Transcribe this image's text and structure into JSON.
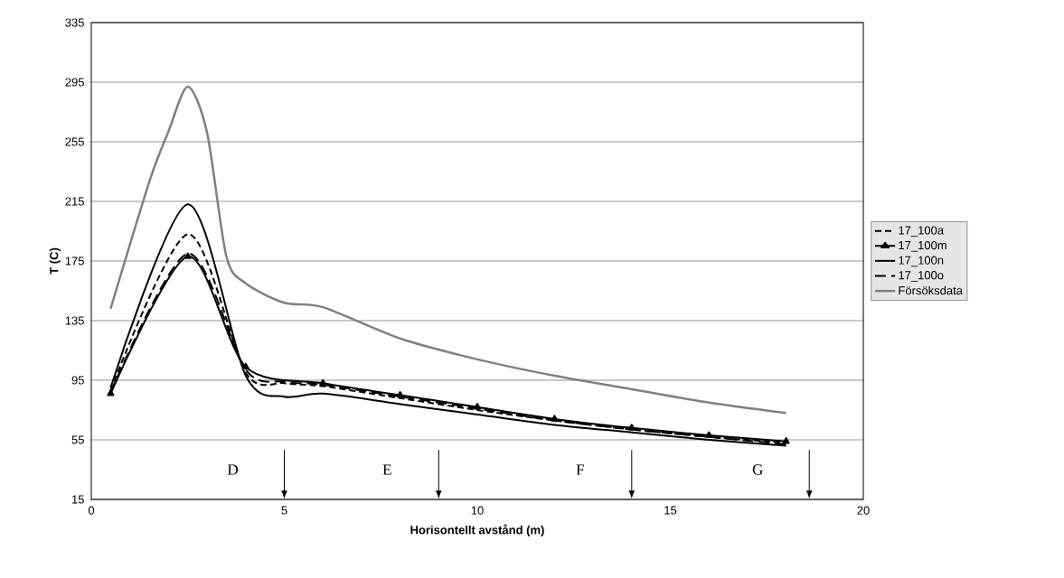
{
  "chart_data": {
    "type": "line",
    "xlabel": "Horisontellt avstånd (m)",
    "ylabel": "T (C)",
    "xlim": [
      0,
      20
    ],
    "xticks": [
      0,
      5,
      10,
      15,
      20
    ],
    "ylim": [
      15,
      335
    ],
    "yticks": [
      15,
      55,
      95,
      135,
      175,
      215,
      255,
      295,
      335
    ],
    "grid": "y",
    "legend": "right",
    "series": [
      {
        "name": "17_100a",
        "color": "#000000",
        "line_style": "dashed",
        "marker": "none",
        "x": [
          0.5,
          2.5,
          4,
          5,
          6,
          8,
          10,
          12,
          14,
          16,
          18
        ],
        "values": [
          88,
          193,
          100,
          93,
          91,
          83,
          75,
          68,
          62,
          57,
          53
        ]
      },
      {
        "name": "17_100m",
        "color": "#000000",
        "line_style": "solid",
        "marker": "triangle",
        "x": [
          0.5,
          2.5,
          4,
          6,
          8,
          10,
          12,
          14,
          16,
          18
        ],
        "values": [
          86,
          178,
          104,
          93,
          85,
          77,
          69,
          63,
          58,
          54
        ]
      },
      {
        "name": "17_100n",
        "color": "#000000",
        "line_style": "solid",
        "marker": "none",
        "x": [
          0.5,
          2.5,
          4,
          5,
          6,
          8,
          10,
          12,
          14,
          16,
          18
        ],
        "values": [
          90,
          213,
          98,
          84,
          86,
          79,
          72,
          65,
          60,
          55,
          51
        ]
      },
      {
        "name": "17_100o",
        "color": "#000000",
        "line_style": "dashed",
        "marker": "none",
        "x": [
          0.5,
          2.5,
          4,
          5,
          6,
          8,
          10,
          12,
          14,
          16,
          18
        ],
        "values": [
          87,
          180,
          102,
          94,
          92,
          84,
          76,
          68,
          62,
          57,
          52
        ]
      },
      {
        "name": "Försöksdata",
        "color": "#808080",
        "line_style": "solid",
        "marker": "none",
        "x": [
          0.5,
          1.5,
          2,
          2.5,
          3,
          3.5,
          4,
          5,
          6,
          8,
          10,
          12,
          14,
          16,
          18
        ],
        "values": [
          143,
          228,
          262,
          292,
          261,
          178,
          160,
          147,
          144,
          123,
          109,
          98,
          89,
          80,
          73
        ]
      }
    ],
    "ref_lines": [
      {
        "axis": "x",
        "value": 5
      },
      {
        "axis": "x",
        "value": 9
      },
      {
        "axis": "x",
        "value": 14
      },
      {
        "axis": "x",
        "value": 18.6
      }
    ],
    "annotations": [
      "D",
      "E",
      "F",
      "G"
    ]
  }
}
